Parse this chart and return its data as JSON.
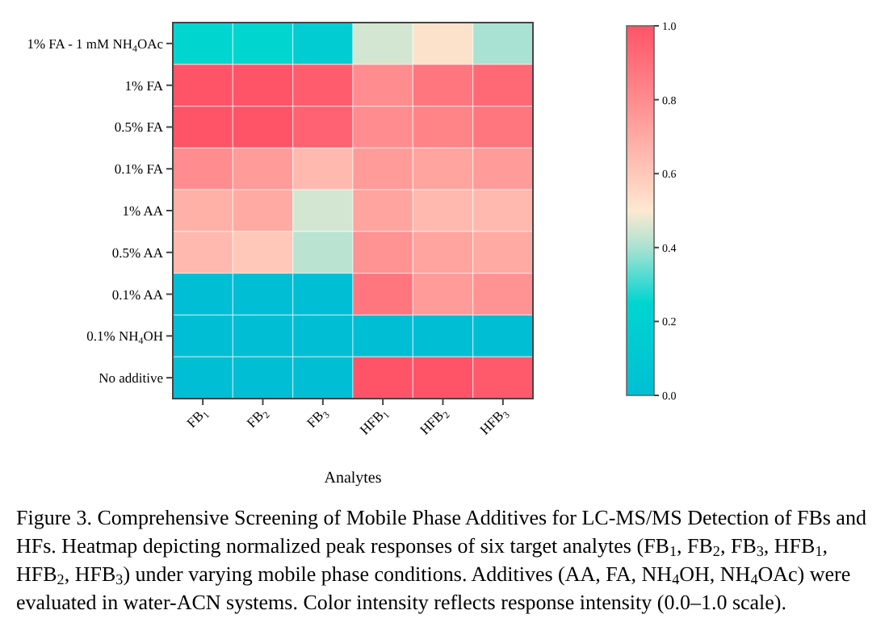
{
  "chart_data": {
    "type": "heatmap",
    "xlabel": "Analytes",
    "categories": [
      "FB$_{1}$",
      "FB$_{2}$",
      "FB$_{3}$",
      "HFB$_{1}$",
      "HFB$_{2}$",
      "HFB$_{3}$"
    ],
    "y_categories": [
      "1% FA - 1 mM NH$_{4}$OAc",
      "1% FA",
      "0.5% FA",
      "0.1% FA",
      "1% AA",
      "0.5% AA",
      "0.1% AA",
      "0.1% NH$_{4}$OH",
      "No additive"
    ],
    "cells": [
      [
        0.25,
        0.25,
        0.15,
        0.45,
        0.52,
        0.4
      ],
      [
        1.0,
        1.0,
        0.97,
        0.8,
        0.88,
        0.93
      ],
      [
        1.0,
        1.0,
        0.95,
        0.8,
        0.83,
        0.88
      ],
      [
        0.8,
        0.75,
        0.65,
        0.75,
        0.72,
        0.75
      ],
      [
        0.68,
        0.7,
        0.45,
        0.72,
        0.65,
        0.65
      ],
      [
        0.65,
        0.6,
        0.42,
        0.78,
        0.72,
        0.7
      ],
      [
        0.0,
        0.0,
        0.0,
        0.88,
        0.75,
        0.78
      ],
      [
        0.0,
        0.0,
        0.0,
        0.0,
        0.0,
        0.0
      ],
      [
        0.0,
        0.0,
        0.0,
        1.0,
        1.0,
        0.98
      ]
    ],
    "clim": [
      0,
      1
    ],
    "cticks": [
      {
        "value": 0,
        "label": "0.0"
      },
      {
        "value": 0.2,
        "label": "0.2"
      },
      {
        "value": 0.4,
        "label": "0.4"
      },
      {
        "value": 0.6,
        "label": "0.6"
      },
      {
        "value": 0.8,
        "label": "0.8"
      },
      {
        "value": 1,
        "label": "1.0"
      }
    ],
    "annotations": [
      "Figure 3. Comprehensive Screening of Mobile Phase Additives for LC-MS/MS Detection of FBs and HFs. Heatmap depicting normalized peak responses of six target analytes (FB$_{1}$, FB$_{2}$, FB$_{3}$, HFB$_{1}$, HFB$_{2}$, HFB$_{3}$) under varying mobile phase conditions. Additives (AA, FA, NH$_{4}$OH, NH$_{4}$OAc) were evaluated in water-ACN systems. Color intensity reflects response intensity (0.0–1.0 scale)."
    ]
  }
}
